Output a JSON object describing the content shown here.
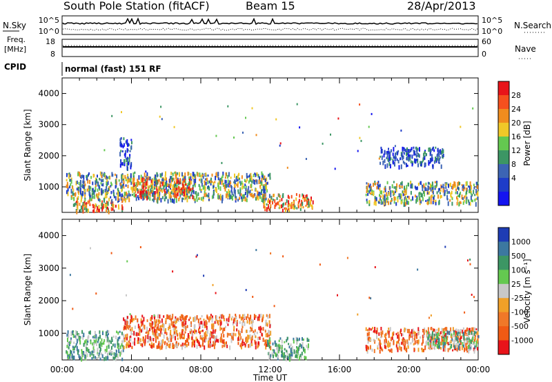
{
  "header": {
    "station": "South Pole Station (fitACF)",
    "beam": "Beam 15",
    "date": "28/Apr/2013"
  },
  "top_panels": {
    "nsky_label": "N.Sky",
    "nsky_ticks": [
      "10^5",
      "10^0"
    ],
    "nsearch_label": "N.Search",
    "nsearch_ticks": [
      "10^5",
      "10^0"
    ],
    "freq_label_1": "Freq.",
    "freq_label_2": "[MHz]",
    "freq_ticks": [
      "18",
      "8"
    ],
    "nave_label": "Nave",
    "nave_ticks": [
      "60",
      "0"
    ],
    "cpid_label": "CPID",
    "cpid_value": "normal (fast) 151 RF"
  },
  "chart_data": [
    {
      "type": "heatmap",
      "name": "power-panel",
      "ylabel": "Slant Range [km]",
      "yticks": [
        "4000",
        "3000",
        "2000",
        "1000"
      ],
      "ylim": [
        180,
        4500
      ],
      "xlim_hours": [
        0,
        24
      ],
      "colorbar_label": "Power [dB]",
      "colorbar_ticks": [
        "28",
        "24",
        "20",
        "16",
        "12",
        "8",
        "4"
      ],
      "colorbar_colors": [
        "#e8141a",
        "#f5501e",
        "#f08c1e",
        "#f0c828",
        "#64c850",
        "#3c9664",
        "#3c64b4",
        "#1e3cc8",
        "#1414f0"
      ],
      "regions": [
        {
          "h0": 0.5,
          "h1": 3.5,
          "r0": 250,
          "r1": 600,
          "level": "high"
        },
        {
          "h0": 0.2,
          "h1": 12.0,
          "r0": 600,
          "r1": 1500,
          "level": "mid"
        },
        {
          "h0": 3.3,
          "h1": 4.0,
          "r0": 1600,
          "r1": 2600,
          "level": "low"
        },
        {
          "h0": 4.0,
          "h1": 7.5,
          "r0": 700,
          "r1": 1300,
          "level": "high"
        },
        {
          "h0": 11.5,
          "h1": 14.5,
          "r0": 300,
          "r1": 800,
          "level": "high"
        },
        {
          "h0": 17.5,
          "h1": 24.0,
          "r0": 500,
          "r1": 1200,
          "level": "mid"
        },
        {
          "h0": 18.3,
          "h1": 22.0,
          "r0": 1700,
          "r1": 2300,
          "level": "low"
        }
      ]
    },
    {
      "type": "heatmap",
      "name": "velocity-panel",
      "ylabel": "Slant Range [km]",
      "yticks": [
        "4000",
        "3000",
        "2000",
        "1000"
      ],
      "ylim": [
        180,
        4500
      ],
      "xlim_hours": [
        0,
        24
      ],
      "xticks": [
        "00:00",
        "04:00",
        "08:00",
        "12:00",
        "16:00",
        "20:00",
        "00:00"
      ],
      "xlabel": "Time UT",
      "colorbar_label": "Velocity [m s⁻¹]",
      "colorbar_ticks": [
        "1000",
        "500",
        "100",
        "25",
        "-25",
        "-100",
        "-500",
        "-1000"
      ],
      "colorbar_colors": [
        "#1e3cb4",
        "#3c78a0",
        "#3c9664",
        "#64c850",
        "#c8c8c8",
        "#f0a028",
        "#f07828",
        "#f05a14",
        "#e8141a"
      ],
      "regions": [
        {
          "h0": 0.2,
          "h1": 3.5,
          "r0": 250,
          "r1": 1100,
          "level": "pos"
        },
        {
          "h0": 3.5,
          "h1": 12.0,
          "r0": 600,
          "r1": 1600,
          "level": "neg"
        },
        {
          "h0": 11.8,
          "h1": 14.2,
          "r0": 250,
          "r1": 900,
          "level": "pos"
        },
        {
          "h0": 17.5,
          "h1": 24.0,
          "r0": 500,
          "r1": 1200,
          "level": "neg"
        },
        {
          "h0": 21.0,
          "h1": 24.0,
          "r0": 600,
          "r1": 1100,
          "level": "pos"
        }
      ]
    }
  ]
}
